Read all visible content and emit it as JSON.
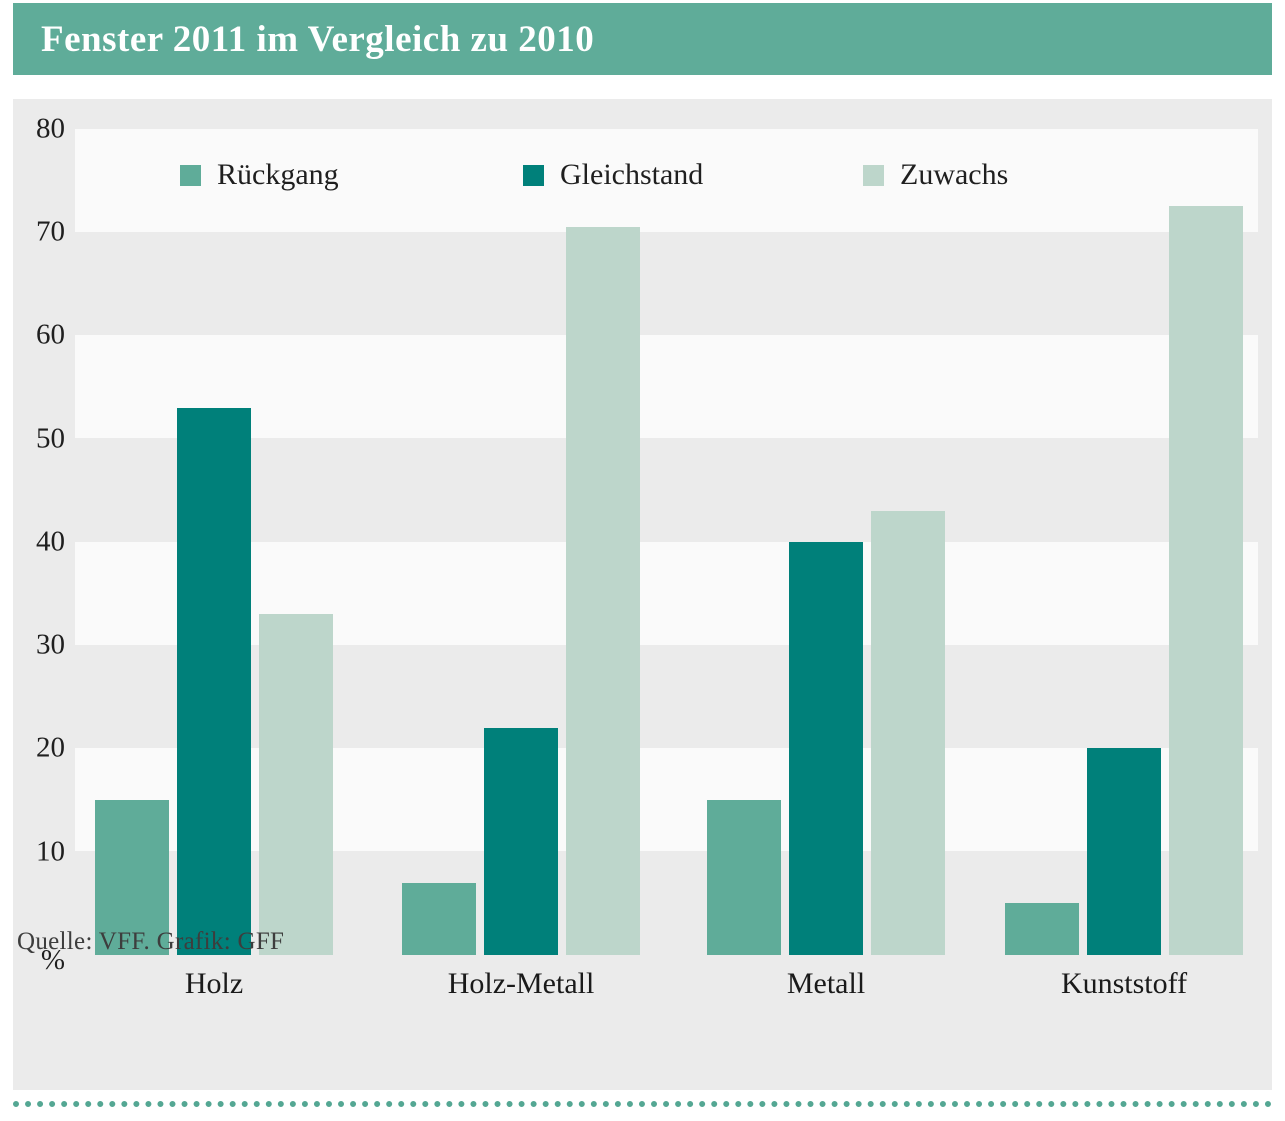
{
  "title": "Fenster 2011 im Vergleich zu 2010",
  "source": "Quelle: VFF. Grafik: GFF",
  "colors": {
    "header_bg": "#5FAC99",
    "panel_bg": "#EBEBEB",
    "stripe": "#FAFAFA",
    "rueckgang": "#5FAC99",
    "gleichstand": "#00807A",
    "zuwachs": "#BDD6CB",
    "dotted_line": "#54A793",
    "text": "#1F1F1F"
  },
  "chart_data": {
    "type": "bar",
    "title": "Fenster 2011 im Vergleich zu 2010",
    "categories": [
      "Holz",
      "Holz-Metall",
      "Metall",
      "Kunststoff"
    ],
    "series": [
      {
        "name": "Rückgang",
        "color_key": "rueckgang",
        "values": [
          15,
          7,
          15,
          5
        ]
      },
      {
        "name": "Gleichstand",
        "color_key": "gleichstand",
        "values": [
          53,
          22,
          40,
          20
        ]
      },
      {
        "name": "Zuwachs",
        "color_key": "zuwachs",
        "values": [
          33,
          70.5,
          43,
          72.5
        ]
      }
    ],
    "ylabel": "%",
    "yticks": [
      80,
      70,
      60,
      50,
      40,
      30,
      20,
      10
    ],
    "ylim": [
      0,
      82.8
    ],
    "grid": "alternating horizontal bands (white stripes on grey for 70-80, 50-60, 30-40, 10-20)",
    "legend_position": "top inside plot",
    "xlabel": ""
  }
}
